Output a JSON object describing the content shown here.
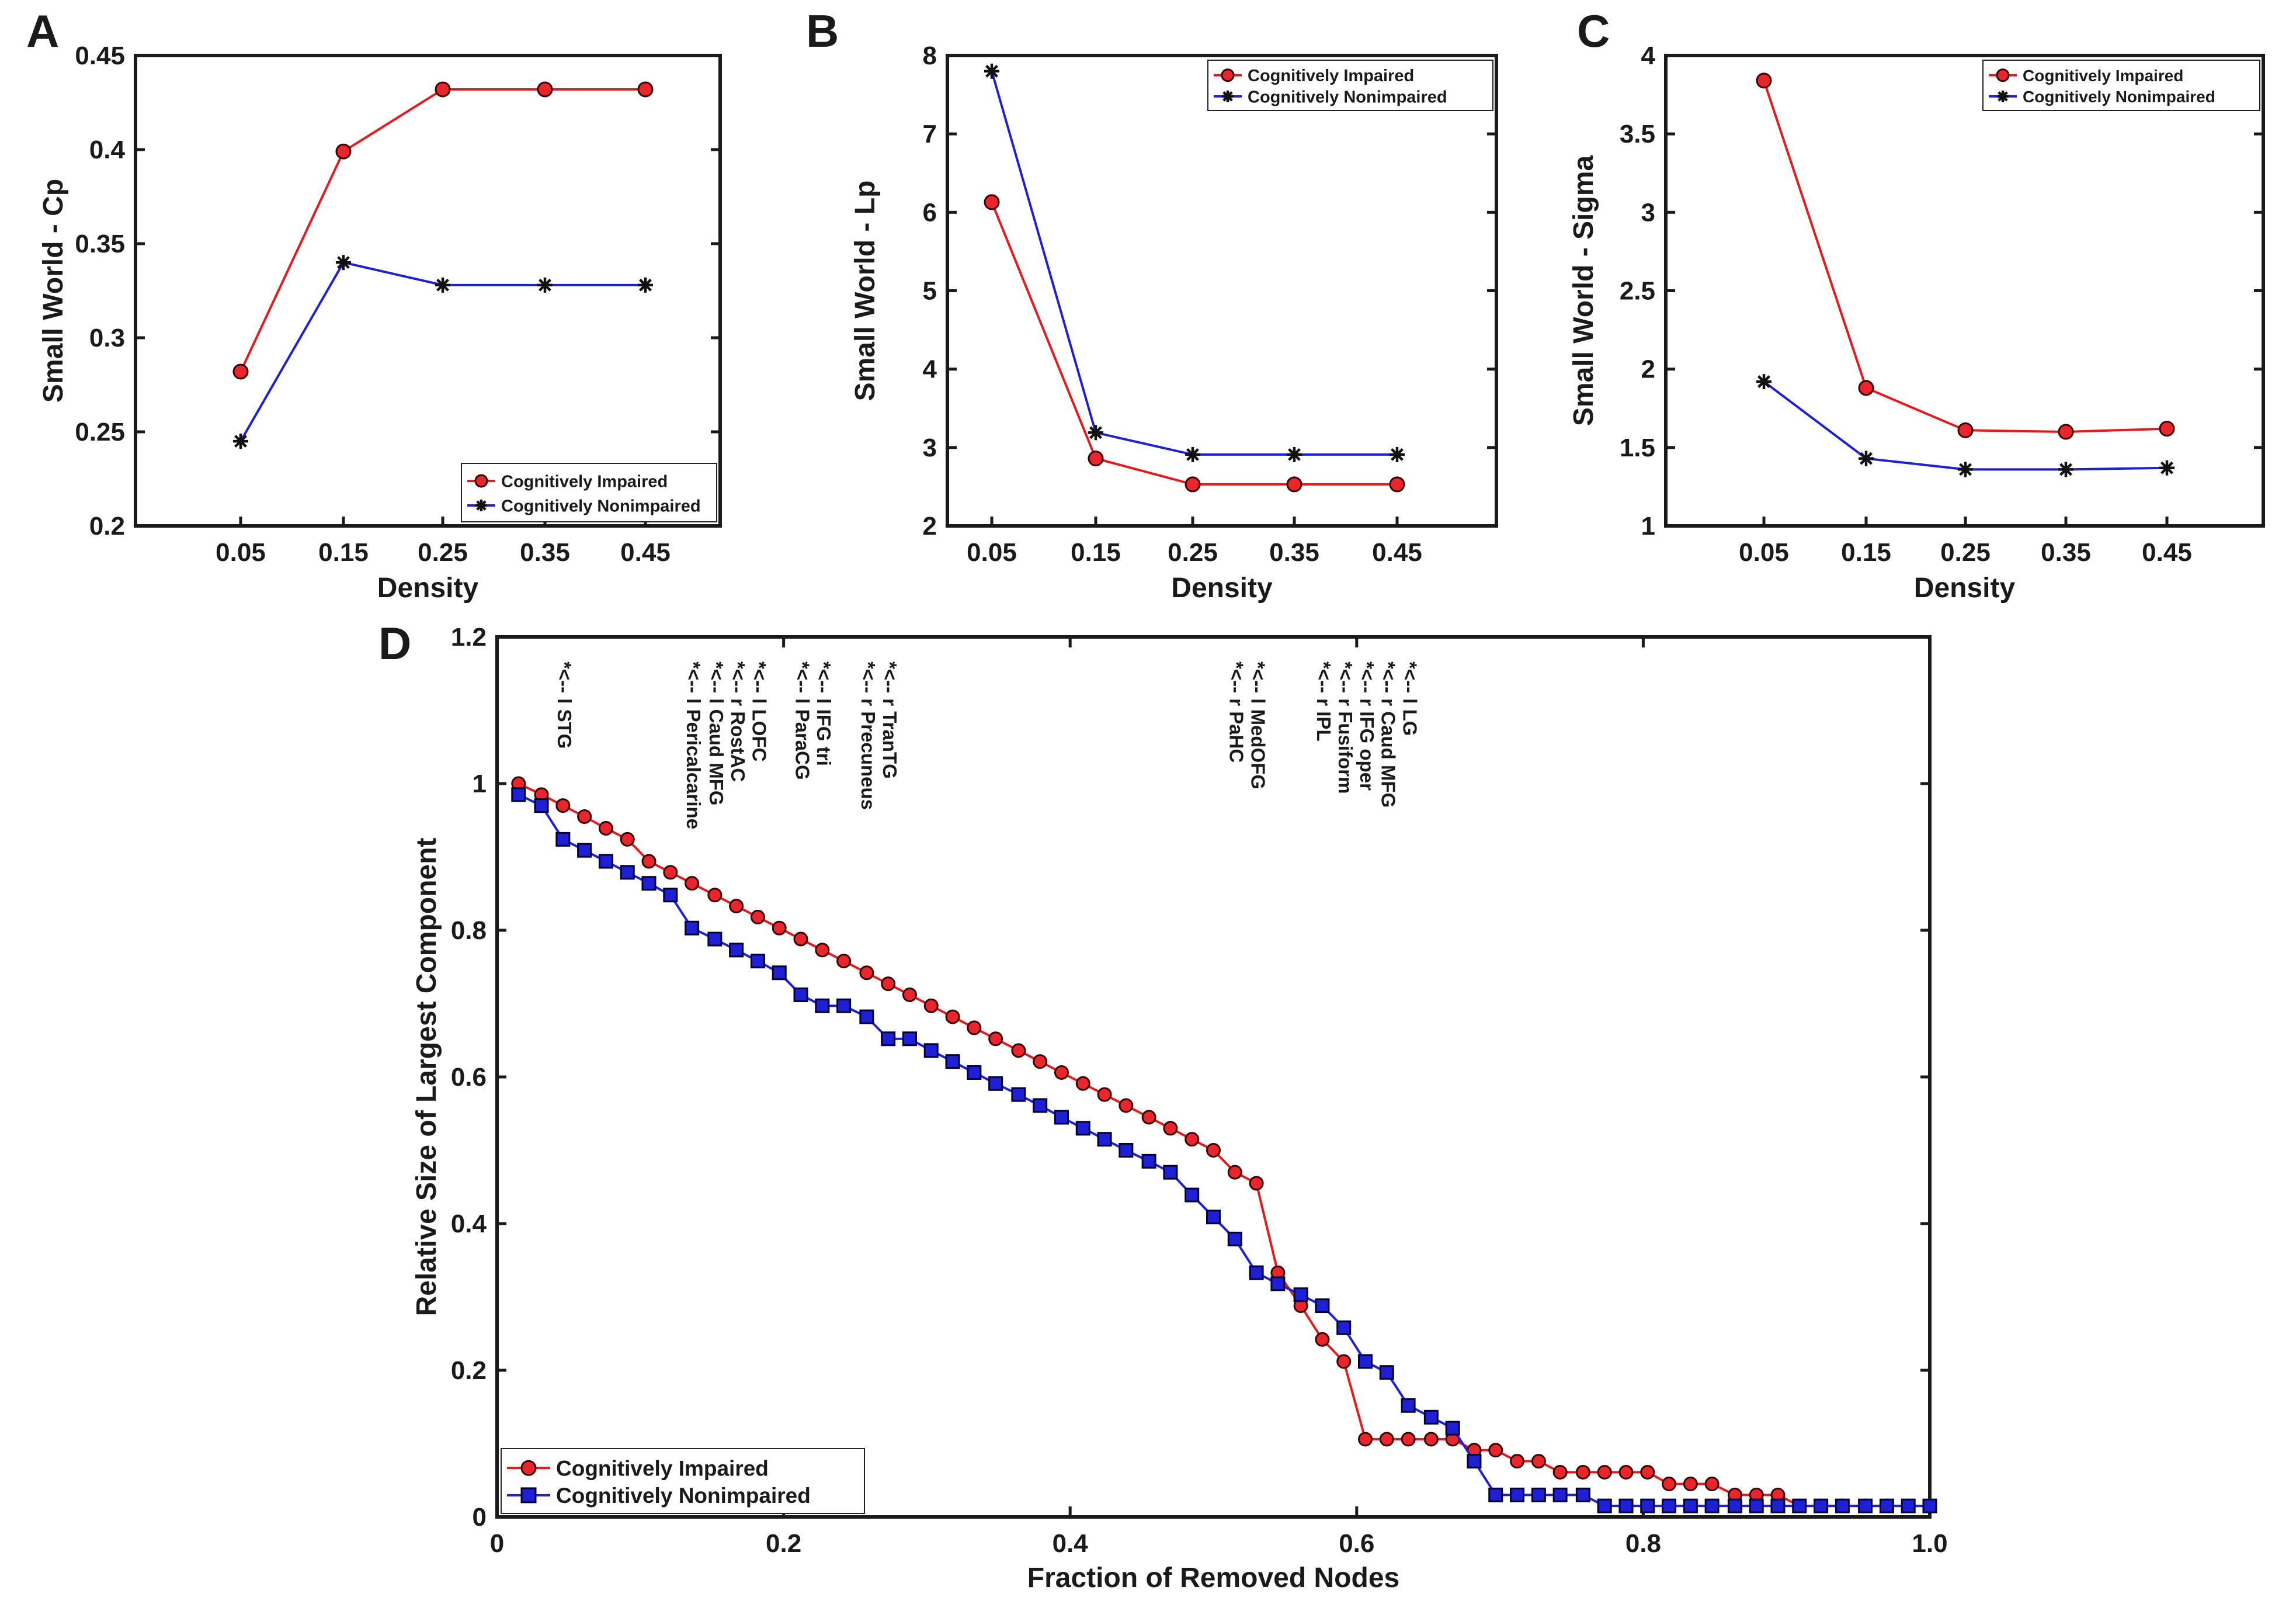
{
  "colors": {
    "impaired": "#e41a1c",
    "nonimpaired": "#1f1fd6",
    "impaired_marker": "#e8262b",
    "nonimpaired_marker": "#1f1fd6",
    "axis": "#1a1a1a"
  },
  "chart_data": [
    {
      "id": "A",
      "panel_label": "A",
      "type": "line",
      "xlabel": "Density",
      "ylabel": "Small World - Cp",
      "categories": [
        "0.05",
        "0.15",
        "0.25",
        "0.35",
        "0.45"
      ],
      "ylim": [
        0.2,
        0.45
      ],
      "yticks": [
        "0.2",
        "0.25",
        "0.3",
        "0.35",
        "0.4",
        "0.45"
      ],
      "legend_position": "bottom-right",
      "series": [
        {
          "name": "Cognitively Impaired",
          "marker": "circle",
          "values": [
            0.282,
            0.399,
            0.432,
            0.432,
            0.432
          ]
        },
        {
          "name": "Cognitively Nonimpaired",
          "marker": "asterisk",
          "values": [
            0.245,
            0.34,
            0.328,
            0.328,
            0.328
          ]
        }
      ]
    },
    {
      "id": "B",
      "panel_label": "B",
      "type": "line",
      "xlabel": "Density",
      "ylabel": "Small World - Lp",
      "categories": [
        "0.05",
        "0.15",
        "0.25",
        "0.35",
        "0.45"
      ],
      "ylim": [
        2,
        8
      ],
      "yticks": [
        "2",
        "3",
        "4",
        "5",
        "6",
        "7",
        "8"
      ],
      "legend_position": "top-right",
      "series": [
        {
          "name": "Cognitively Impaired",
          "marker": "circle",
          "values": [
            6.13,
            2.86,
            2.53,
            2.53,
            2.53
          ]
        },
        {
          "name": "Cognitively Nonimpaired",
          "marker": "asterisk",
          "values": [
            7.8,
            3.19,
            2.91,
            2.91,
            2.91
          ]
        }
      ]
    },
    {
      "id": "C",
      "panel_label": "C",
      "type": "line",
      "xlabel": "Density",
      "ylabel": "Small World - Sigma",
      "categories": [
        "0.05",
        "0.15",
        "0.25",
        "0.35",
        "0.45"
      ],
      "ylim": [
        1,
        4
      ],
      "yticks": [
        "1",
        "1.5",
        "2",
        "2.5",
        "3",
        "3.5",
        "4"
      ],
      "legend_position": "top-right",
      "series": [
        {
          "name": "Cognitively Impaired",
          "marker": "circle",
          "values": [
            3.84,
            1.88,
            1.61,
            1.6,
            1.62
          ]
        },
        {
          "name": "Cognitively Nonimpaired",
          "marker": "asterisk",
          "values": [
            1.92,
            1.43,
            1.36,
            1.36,
            1.37
          ]
        }
      ]
    },
    {
      "id": "D",
      "panel_label": "D",
      "type": "line",
      "xlabel": "Fraction of Removed Nodes",
      "ylabel": "Relative Size of Largest Component",
      "xlim": [
        0,
        1
      ],
      "ylim": [
        0,
        1.2
      ],
      "xticks": [
        "0",
        "0.2",
        "0.4",
        "0.6",
        "0.8",
        "1.0"
      ],
      "yticks": [
        "0",
        "0.2",
        "0.4",
        "0.6",
        "0.8",
        "1",
        "1.2"
      ],
      "legend_position": "bottom-left",
      "series": [
        {
          "name": "Cognitively Impaired",
          "marker": "circle",
          "x": [
            0.015,
            0.031,
            0.046,
            0.061,
            0.076,
            0.091,
            0.106,
            0.121,
            0.136,
            0.152,
            0.167,
            0.182,
            0.197,
            0.212,
            0.227,
            0.242,
            0.258,
            0.273,
            0.288,
            0.303,
            0.318,
            0.333,
            0.348,
            0.364,
            0.379,
            0.394,
            0.409,
            0.424,
            0.439,
            0.455,
            0.47,
            0.485,
            0.5,
            0.515,
            0.53,
            0.545,
            0.561,
            0.576,
            0.591,
            0.606,
            0.621,
            0.636,
            0.652,
            0.667,
            0.682,
            0.697,
            0.712,
            0.727,
            0.742,
            0.758,
            0.773,
            0.788,
            0.803,
            0.818,
            0.833,
            0.848,
            0.864,
            0.879,
            0.894,
            0.909,
            0.924,
            0.939,
            0.955,
            0.97,
            0.985,
            1.0
          ],
          "values": [
            1.0,
            0.985,
            0.97,
            0.955,
            0.939,
            0.924,
            0.894,
            0.879,
            0.864,
            0.848,
            0.833,
            0.818,
            0.803,
            0.788,
            0.773,
            0.758,
            0.742,
            0.727,
            0.712,
            0.697,
            0.682,
            0.667,
            0.652,
            0.636,
            0.621,
            0.606,
            0.591,
            0.576,
            0.561,
            0.545,
            0.53,
            0.515,
            0.5,
            0.47,
            0.455,
            0.333,
            0.288,
            0.242,
            0.212,
            0.106,
            0.106,
            0.106,
            0.106,
            0.106,
            0.091,
            0.091,
            0.076,
            0.076,
            0.061,
            0.061,
            0.061,
            0.061,
            0.061,
            0.045,
            0.045,
            0.045,
            0.03,
            0.03,
            0.03,
            0.015,
            0.015,
            0.015,
            0.015,
            0.015,
            0.015,
            0.015
          ]
        },
        {
          "name": "Cognitively Nonimpaired",
          "marker": "square",
          "x": [
            0.015,
            0.031,
            0.046,
            0.061,
            0.076,
            0.091,
            0.106,
            0.121,
            0.136,
            0.152,
            0.167,
            0.182,
            0.197,
            0.212,
            0.227,
            0.242,
            0.258,
            0.273,
            0.288,
            0.303,
            0.318,
            0.333,
            0.348,
            0.364,
            0.379,
            0.394,
            0.409,
            0.424,
            0.439,
            0.455,
            0.47,
            0.485,
            0.5,
            0.515,
            0.53,
            0.545,
            0.561,
            0.576,
            0.591,
            0.606,
            0.621,
            0.636,
            0.652,
            0.667,
            0.682,
            0.697,
            0.712,
            0.727,
            0.742,
            0.758,
            0.773,
            0.788,
            0.803,
            0.818,
            0.833,
            0.848,
            0.864,
            0.879,
            0.894,
            0.909,
            0.924,
            0.939,
            0.955,
            0.97,
            0.985,
            1.0
          ],
          "values": [
            0.985,
            0.97,
            0.924,
            0.909,
            0.894,
            0.879,
            0.864,
            0.848,
            0.803,
            0.788,
            0.773,
            0.758,
            0.742,
            0.712,
            0.697,
            0.697,
            0.682,
            0.652,
            0.652,
            0.636,
            0.621,
            0.606,
            0.591,
            0.576,
            0.561,
            0.545,
            0.53,
            0.515,
            0.5,
            0.485,
            0.47,
            0.439,
            0.409,
            0.379,
            0.333,
            0.318,
            0.303,
            0.288,
            0.258,
            0.212,
            0.197,
            0.152,
            0.136,
            0.121,
            0.076,
            0.03,
            0.03,
            0.03,
            0.03,
            0.03,
            0.015,
            0.015,
            0.015,
            0.015,
            0.015,
            0.015,
            0.015,
            0.015,
            0.015,
            0.015,
            0.015,
            0.015,
            0.015,
            0.015,
            0.015,
            0.015
          ]
        }
      ],
      "annotations": [
        {
          "text": "*<-- l STG",
          "x": 0.046
        },
        {
          "text": "*<-- l Pericalcarine",
          "x": 0.136
        },
        {
          "text": "*<-- l Caud MFG",
          "x": 0.152
        },
        {
          "text": "*<-- r RostAC",
          "x": 0.167
        },
        {
          "text": "*<-- l LOFC",
          "x": 0.182
        },
        {
          "text": "*<-- l ParaCG",
          "x": 0.212
        },
        {
          "text": "*<-- l IFG tri",
          "x": 0.227
        },
        {
          "text": "*<-- r Precuneus",
          "x": 0.258
        },
        {
          "text": "*<-- r TranTG",
          "x": 0.273
        },
        {
          "text": "*<-- r PaHC",
          "x": 0.515
        },
        {
          "text": "*<-- l MedOFG",
          "x": 0.53
        },
        {
          "text": "*<-- r IPL",
          "x": 0.576
        },
        {
          "text": "*<-- r Fusiform",
          "x": 0.591
        },
        {
          "text": "*<-- r IFG oper",
          "x": 0.606
        },
        {
          "text": "*<-- r Caud MFG",
          "x": 0.621
        },
        {
          "text": "*<-- l LG",
          "x": 0.636
        }
      ]
    }
  ]
}
